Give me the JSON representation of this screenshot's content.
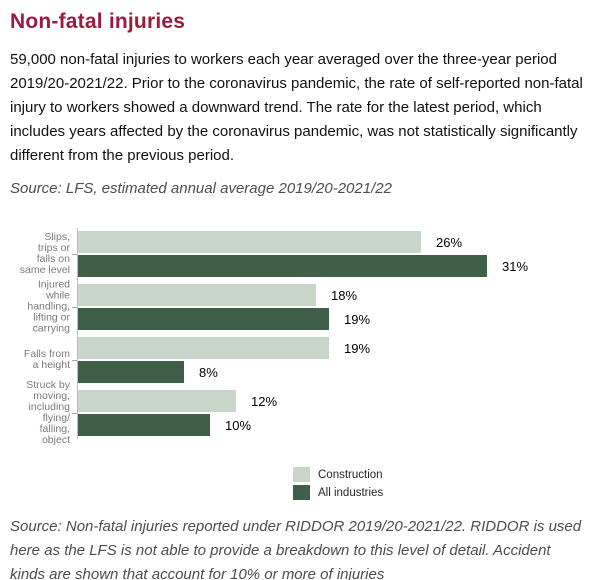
{
  "page": {
    "title": "Non-fatal injuries",
    "intro": "59,000 non-fatal injuries to workers each year averaged over the three-year period 2019/20-2021/22. Prior to the coronavirus pandemic, the rate of self-reported non-fatal injury to workers showed a downward trend. The rate for the latest period, which includes years affected by the coronavirus pandemic, was not statistically significantly different from the previous period.",
    "chart_source": "Source: LFS, estimated annual average 2019/20-2021/22",
    "footer_source": "Source: Non-fatal injuries reported under RIDDOR 2019/20-2021/22. RIDDOR is used here as the LFS is not able to provide a breakdown to this level of detail. Accident kinds are shown that account for 10% or more of injuries"
  },
  "colors": {
    "title": "#9a1c3c",
    "body_text": "#111111",
    "source_text": "#4d4d4d",
    "category_label": "#7a7a7a",
    "axis_line": "#bfbfbf",
    "construction_green": "#c7d6c8",
    "all_industries_green": "#405f48"
  },
  "chart_data": {
    "type": "bar",
    "orientation": "horizontal",
    "title": "",
    "xlabel": "",
    "ylabel": "",
    "value_suffix": "%",
    "xlim": [
      0,
      35
    ],
    "grid": false,
    "legend_position": "bottom-center",
    "categories": [
      "Slips, trips or falls on same level",
      "Injured while handling, lifting or carrying",
      "Falls from a height",
      "Struck by moving, including flying/ falling, object"
    ],
    "category_label_lines": [
      "Slips,\ntrips or\nfalls on\nsame level",
      "Injured\nwhile\nhandling,\nlifting or\ncarrying",
      "Falls from\na height",
      "Struck by\nmoving,\nincluding\nflying/\nfalling,\nobject"
    ],
    "series": [
      {
        "name": "Construction",
        "color": "#c7d6c8",
        "values": [
          26,
          18,
          19,
          12
        ]
      },
      {
        "name": "All industries",
        "color": "#405f48",
        "values": [
          31,
          19,
          8,
          10
        ]
      }
    ]
  }
}
